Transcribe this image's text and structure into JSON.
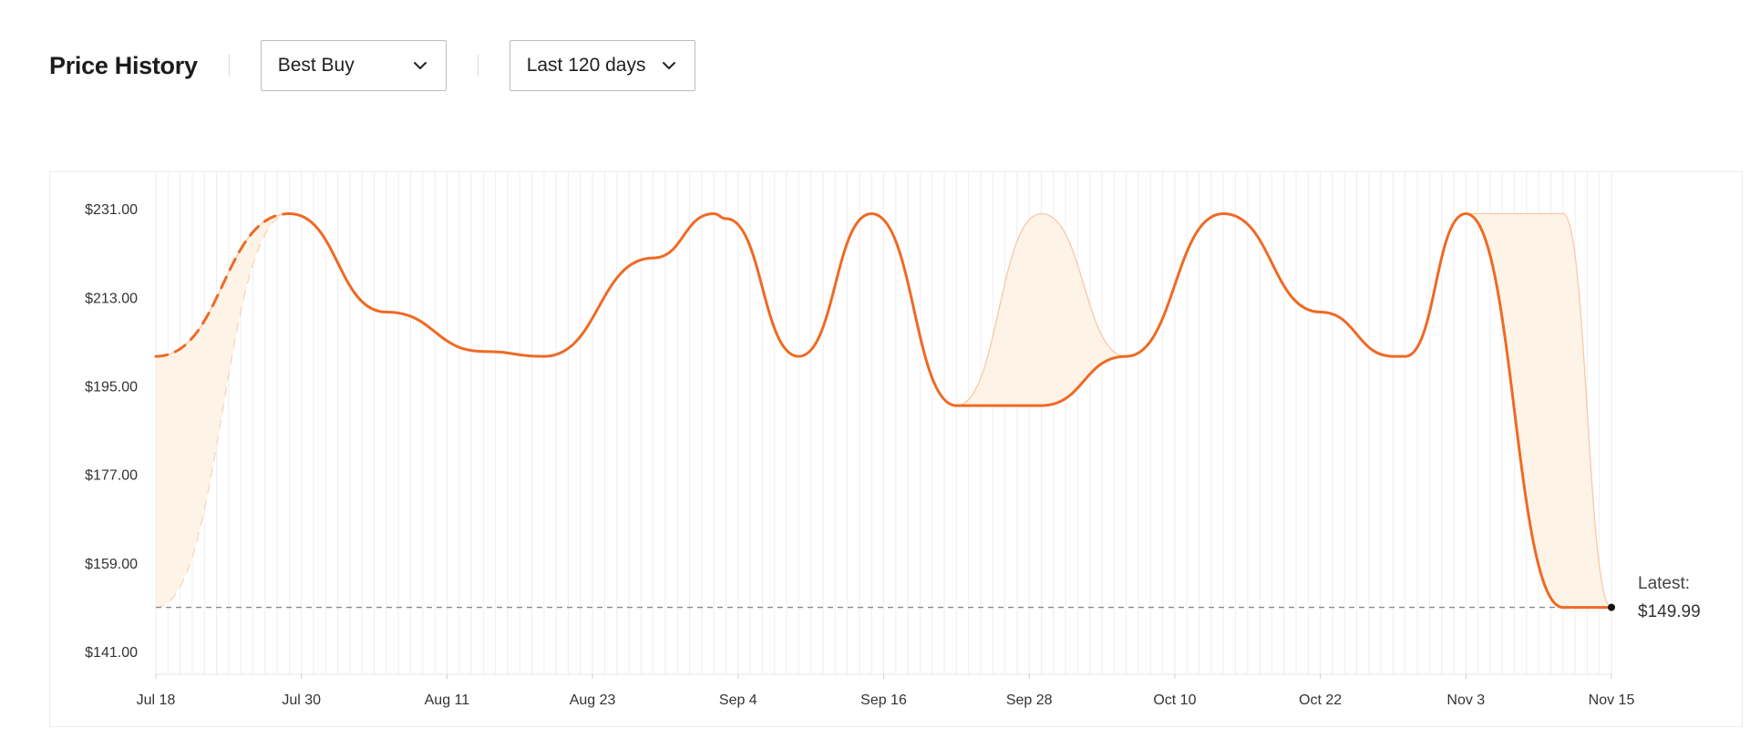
{
  "header": {
    "title": "Price History",
    "store_select": {
      "value": "Best Buy"
    },
    "range_select": {
      "value": "Last 120 days"
    }
  },
  "colors": {
    "line": "#ee6a24",
    "fill": "#fdf3e6",
    "fill_edge": "#f8c9a8",
    "grid": "#eeeeee",
    "baseline": "#8a8a8a",
    "axis_text": "#333333"
  },
  "chart_data": {
    "type": "line",
    "title": "",
    "xlabel": "",
    "ylabel": "",
    "x_ticks": [
      "Jul 18",
      "Jul 30",
      "Aug 11",
      "Aug 23",
      "Sep 4",
      "Sep 16",
      "Sep 28",
      "Oct 10",
      "Oct 22",
      "Nov 3",
      "Nov 15"
    ],
    "y_ticks": [
      "$231.00",
      "$213.00",
      "$195.00",
      "$177.00",
      "$159.00",
      "$141.00"
    ],
    "ylim": [
      136.4,
      238.6
    ],
    "xlim_days": [
      0,
      120
    ],
    "grid": "vertical",
    "series": [
      {
        "style": "dashed",
        "points": [
          [
            "Jul 18",
            200.99
          ],
          [
            "Jul 29",
            229.99
          ]
        ]
      },
      {
        "style": "solid",
        "points": [
          [
            "Jul 29",
            229.99
          ],
          [
            "Aug 6",
            210.0
          ],
          [
            "Aug 14",
            202.0
          ],
          [
            "Aug 19",
            200.99
          ],
          [
            "Aug 28",
            221.0
          ],
          [
            "Sep 2",
            229.99
          ],
          [
            "Sep 3",
            229.0
          ],
          [
            "Sep 9",
            200.99
          ],
          [
            "Sep 15",
            229.99
          ],
          [
            "Sep 22",
            190.99
          ],
          [
            "Sep 29",
            190.99
          ],
          [
            "Oct 6",
            200.99
          ],
          [
            "Oct 14",
            229.99
          ],
          [
            "Oct 22",
            210.0
          ],
          [
            "Oct 28",
            200.99
          ],
          [
            "Oct 29",
            200.99
          ],
          [
            "Nov 3",
            229.99
          ],
          [
            "Nov 11",
            149.99
          ],
          [
            "Nov 15",
            149.99
          ]
        ]
      },
      {
        "style": "band",
        "ranges": [
          {
            "lower": [
              [
                "Jul 18",
                149.99
              ],
              [
                "Jul 29",
                229.99
              ]
            ],
            "upper": [
              [
                "Jul 18",
                200.99
              ],
              [
                "Jul 29",
                229.99
              ]
            ]
          },
          {
            "lower": [
              [
                "Sep 22",
                190.99
              ],
              [
                "Sep 29",
                190.99
              ],
              [
                "Oct 6",
                200.99
              ]
            ],
            "upper": [
              [
                "Sep 22",
                190.99
              ],
              [
                "Sep 29",
                229.99
              ],
              [
                "Oct 6",
                200.99
              ]
            ]
          },
          {
            "lower": [
              [
                "Nov 3",
                229.99
              ],
              [
                "Nov 11",
                149.99
              ],
              [
                "Nov 15",
                149.99
              ]
            ],
            "upper": [
              [
                "Nov 3",
                229.99
              ],
              [
                "Nov 11",
                229.99
              ],
              [
                "Nov 15",
                149.99
              ]
            ]
          }
        ]
      }
    ],
    "reference_line": {
      "value": 149.99,
      "style": "dashed"
    },
    "annotation": {
      "label": "Latest:",
      "value": "$149.99",
      "date": "Nov 15"
    }
  }
}
